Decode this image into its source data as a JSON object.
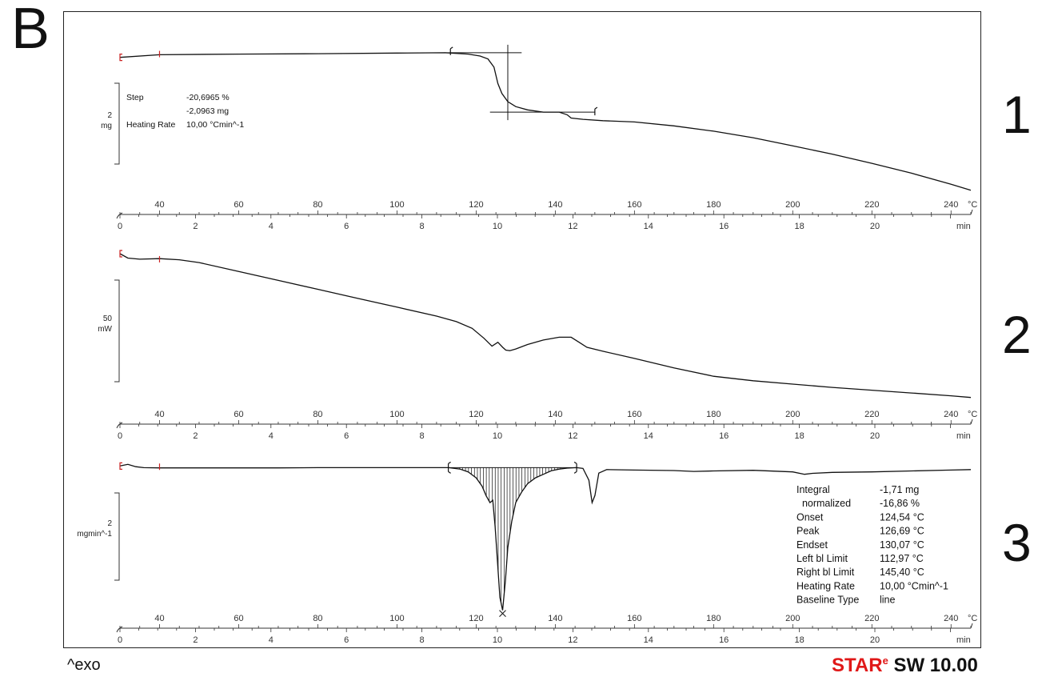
{
  "panel_label": "B",
  "footer": {
    "exo": "^exo",
    "brand_star": "STAR",
    "brand_e": "e",
    "brand_sw": " SW 10.00"
  },
  "colors": {
    "curve": "#111111",
    "axis": "#333333",
    "limit_marker": "#cc2222",
    "brand_red": "#e01818"
  },
  "chart_data": [
    {
      "type": "line",
      "curve_label": "1",
      "scale_bar": {
        "value": "2",
        "unit": "mg"
      },
      "x_temp_ticks": [
        40,
        60,
        80,
        100,
        120,
        140,
        160,
        180,
        200,
        220,
        240
      ],
      "x_temp_unit": "°C",
      "x_time_ticks": [
        0,
        2,
        4,
        6,
        8,
        10,
        12,
        14,
        16,
        18,
        20
      ],
      "x_time_unit": "min",
      "annotations": [
        {
          "label": "Step",
          "value": "-20,6965 %"
        },
        {
          "label": "",
          "value": "-2,0963 mg"
        },
        {
          "label": "Heating Rate",
          "value": "10,00 °Cmin^-1"
        }
      ],
      "series": [
        {
          "x_temp": [
            30,
            40,
            60,
            80,
            100,
            112,
            118,
            121,
            123,
            124.5,
            125.5,
            126.5,
            128,
            130,
            133,
            137,
            141,
            143,
            144,
            147,
            152,
            160,
            170,
            180,
            190,
            200,
            210,
            220,
            230,
            240,
            245
          ],
          "y_mg": [
            9.85,
            9.93,
            9.95,
            9.96,
            9.98,
            9.99,
            9.95,
            9.89,
            9.8,
            9.55,
            9.05,
            8.75,
            8.5,
            8.35,
            8.25,
            8.18,
            8.18,
            8.1,
            8.0,
            7.96,
            7.92,
            7.88,
            7.76,
            7.6,
            7.4,
            7.15,
            6.9,
            6.62,
            6.32,
            5.98,
            5.8
          ]
        }
      ],
      "ylim": [
        5.5,
        10.5
      ]
    },
    {
      "type": "line",
      "curve_label": "2",
      "scale_bar": {
        "value": "50",
        "unit": "mW"
      },
      "x_temp_ticks": [
        40,
        60,
        80,
        100,
        120,
        140,
        160,
        180,
        200,
        220,
        240
      ],
      "x_temp_unit": "°C",
      "x_time_ticks": [
        0,
        2,
        4,
        6,
        8,
        10,
        12,
        14,
        16,
        18,
        20
      ],
      "x_time_unit": "min",
      "series": [
        {
          "x_temp": [
            30,
            32,
            35,
            40,
            45,
            50,
            60,
            70,
            80,
            90,
            100,
            110,
            115,
            119,
            122,
            124,
            125.5,
            126.7,
            127.5,
            128.5,
            130,
            133,
            137,
            141,
            144,
            146,
            148,
            152,
            160,
            170,
            180,
            190,
            200,
            210,
            220,
            230,
            240,
            245
          ],
          "y_mw": [
            100,
            92,
            90,
            91,
            89,
            84,
            68,
            52,
            36,
            20,
            4,
            -12,
            -22,
            -34,
            -52,
            -66,
            -59,
            -68,
            -73,
            -74,
            -71,
            -63,
            -55,
            -50,
            -50,
            -59,
            -68,
            -75,
            -88,
            -105,
            -120,
            -128,
            -134,
            -140,
            -145,
            -150,
            -155,
            -158
          ]
        }
      ],
      "ylim": [
        -180,
        110
      ]
    },
    {
      "type": "line",
      "curve_label": "3",
      "scale_bar": {
        "value": "2",
        "unit": "mgmin^-1"
      },
      "x_temp_ticks": [
        40,
        60,
        80,
        100,
        120,
        140,
        160,
        180,
        200,
        220,
        240
      ],
      "x_temp_unit": "°C",
      "x_time_ticks": [
        0,
        2,
        4,
        6,
        8,
        10,
        12,
        14,
        16,
        18,
        20
      ],
      "x_time_unit": "min",
      "annotations": [
        {
          "label": "Integral",
          "value": "-1,71 mg"
        },
        {
          "label": "  normalized",
          "value": "-16,86 %"
        },
        {
          "label": "Onset",
          "value": "124,54 °C"
        },
        {
          "label": "Peak",
          "value": "126,69 °C"
        },
        {
          "label": "Endset",
          "value": "130,07 °C"
        },
        {
          "label": "Left bl Limit",
          "value": "112,97 °C"
        },
        {
          "label": "Right bl Limit",
          "value": "145,40 °C"
        },
        {
          "label": "Heating Rate",
          "value": "10,00 °Cmin^-1"
        },
        {
          "label": "Baseline Type",
          "value": "line"
        }
      ],
      "series": [
        {
          "x_temp": [
            30,
            32,
            34,
            36,
            40,
            50,
            60,
            70,
            80,
            90,
            100,
            110,
            113,
            116,
            118,
            120,
            121.5,
            122.5,
            123.5,
            124.2,
            124.8,
            125.4,
            126,
            126.69,
            127.4,
            128,
            129,
            130,
            131.5,
            133,
            135,
            137,
            139,
            141,
            143,
            145.4,
            147,
            148.5,
            149.3,
            150,
            151,
            153,
            160,
            170,
            175,
            180,
            190,
            200,
            203,
            205,
            210,
            220,
            230,
            240,
            245
          ],
          "y_rate": [
            0.05,
            0.12,
            0.02,
            -0.02,
            -0.03,
            -0.03,
            -0.03,
            -0.03,
            -0.02,
            -0.02,
            -0.02,
            -0.02,
            -0.02,
            -0.08,
            -0.2,
            -0.45,
            -0.8,
            -1.2,
            -1.5,
            -1.4,
            -2.5,
            -4.0,
            -5.5,
            -6.05,
            -4.8,
            -3.4,
            -2.3,
            -1.5,
            -1.05,
            -0.7,
            -0.45,
            -0.3,
            -0.15,
            -0.08,
            -0.04,
            -0.02,
            -0.05,
            -0.55,
            -1.5,
            -1.2,
            -0.25,
            -0.1,
            -0.12,
            -0.14,
            -0.18,
            -0.16,
            -0.13,
            -0.2,
            -0.3,
            -0.26,
            -0.22,
            -0.2,
            -0.16,
            -0.12,
            -0.1
          ]
        }
      ],
      "ylim": [
        -6.3,
        0.4
      ]
    }
  ]
}
